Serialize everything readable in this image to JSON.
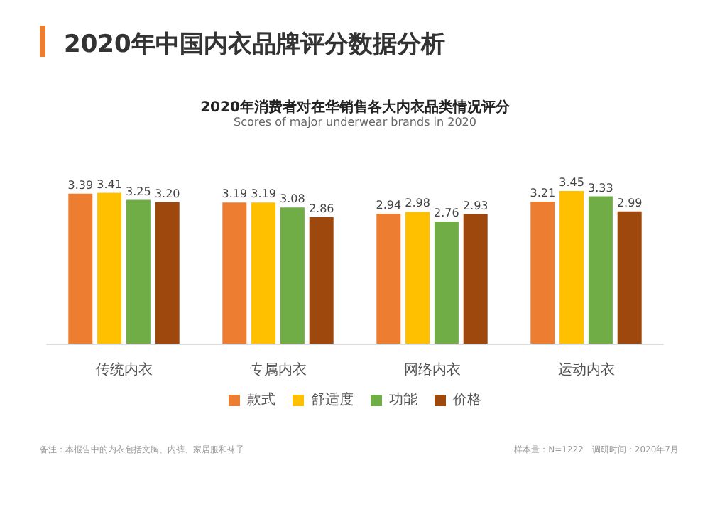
{
  "chart_data": {
    "type": "bar",
    "title": "2020年中国内衣品牌评分数据分析",
    "subtitle": "2020年消费者对在华销售各大内衣品类情况评分",
    "annotations": [
      "Scores of major underwear brands in 2020",
      "备注：本报告中的内衣包括文胸、内裤、家居服和袜子",
      "样本量：N=1222　调研时间：2020年7月"
    ],
    "categories": [
      "传统内衣",
      "专属内衣",
      "网络内衣",
      "运动内衣"
    ],
    "series": [
      {
        "name": "款式",
        "color": "#ed7d31",
        "values": [
          3.39,
          3.19,
          2.94,
          3.21
        ],
        "value_labels": [
          "3.39",
          "3.19",
          "2.94",
          "3.21"
        ]
      },
      {
        "name": "舒适度",
        "color": "#ffc000",
        "values": [
          3.41,
          3.19,
          2.98,
          3.45
        ],
        "value_labels": [
          "3.41",
          "3.19",
          "2.98",
          "3.45"
        ]
      },
      {
        "name": "功能",
        "color": "#70ad47",
        "values": [
          3.25,
          3.08,
          2.76,
          3.33
        ],
        "value_labels": [
          "3.25",
          "3.08",
          "2.76",
          "3.33"
        ]
      },
      {
        "name": "价格",
        "color": "#9e480e",
        "values": [
          3.2,
          2.86,
          2.93,
          2.99
        ],
        "value_labels": [
          "3.20",
          "2.86",
          "2.93",
          "2.99"
        ]
      }
    ],
    "legend": "bottom"
  }
}
